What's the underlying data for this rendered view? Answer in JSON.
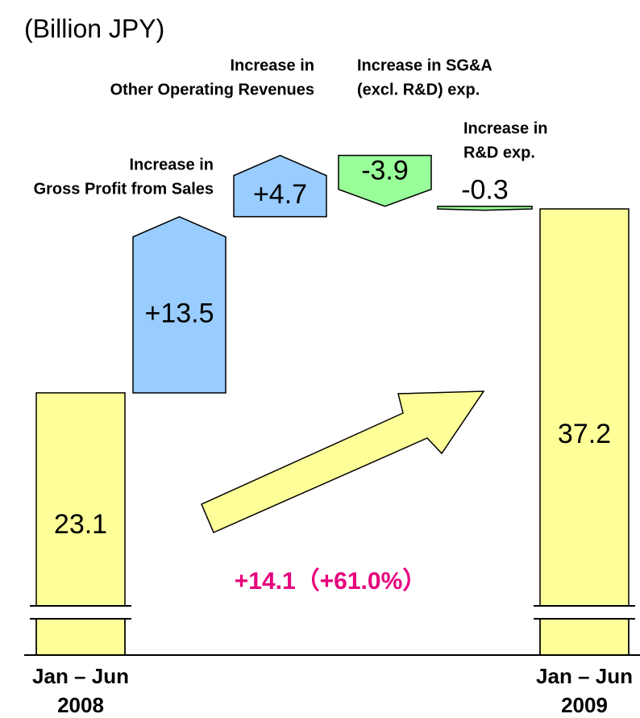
{
  "chart_data": {
    "type": "waterfall",
    "title": "(Billion JPY)",
    "categories": [
      [
        "Jan – Jun",
        "2008"
      ],
      [
        "Increase in",
        "Gross Profit from Sales"
      ],
      [
        "Increase in",
        "Other Operating Revenues"
      ],
      [
        "Increase in SG&A",
        "(excl. R&D) exp."
      ],
      [
        "Increase in",
        "R&D exp."
      ],
      [
        "Jan – Jun",
        "2009"
      ]
    ],
    "values": [
      23.1,
      13.5,
      4.7,
      -3.9,
      -0.3,
      37.2
    ],
    "value_labels": [
      "23.1",
      "+13.5",
      "+4.7",
      "-3.9",
      "-0.3",
      "37.2"
    ],
    "colors": [
      "#ffff99",
      "#99ccff",
      "#99ccff",
      "#99ff99",
      "#99ff99",
      "#ffff99"
    ],
    "ylim": [
      3,
      44
    ],
    "axis_break": true,
    "annotation": "+14.1（+61.0%）"
  }
}
